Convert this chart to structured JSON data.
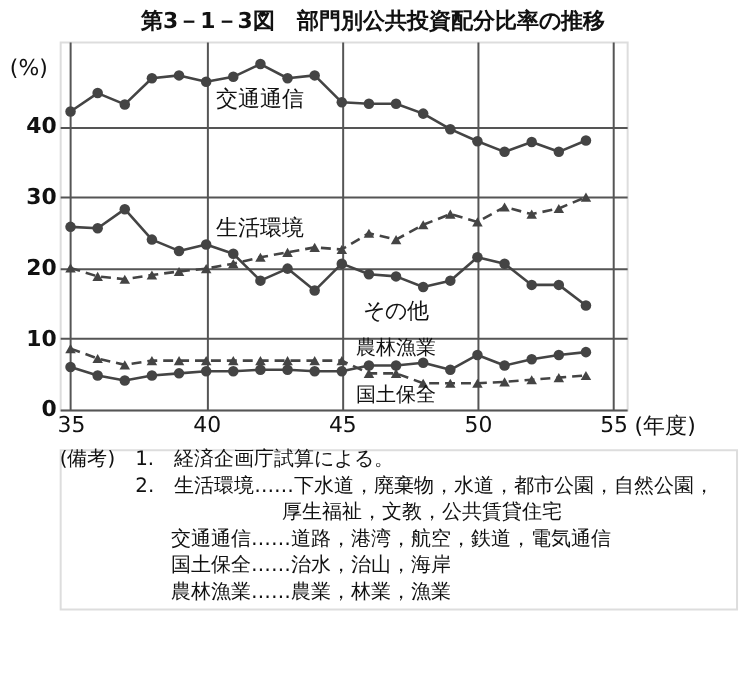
{
  "chart_data": {
    "type": "line",
    "title": "第3－1－3図　部門別公共投資配分比率の推移",
    "xlabel": "(年度)",
    "ylabel": "(%)",
    "x": [
      35,
      36,
      37,
      38,
      39,
      40,
      41,
      42,
      43,
      44,
      45,
      46,
      47,
      48,
      49,
      50,
      51,
      52,
      53,
      54
    ],
    "xlim": [
      34.6,
      55.5
    ],
    "xticks": [
      35,
      40,
      45,
      50,
      55
    ],
    "ylim": [
      0,
      52
    ],
    "yticks": [
      0,
      10,
      20,
      30,
      40
    ],
    "grid": true,
    "series": [
      {
        "name": "交通通信",
        "color": "#444444",
        "marker": "circle",
        "line_style": "solid",
        "values": [
          42.1,
          44.7,
          43.1,
          46.8,
          47.2,
          46.3,
          47.0,
          48.8,
          46.8,
          47.2,
          43.4,
          43.2,
          43.2,
          41.8,
          39.6,
          37.9,
          36.4,
          37.8,
          36.4,
          38.0
        ]
      },
      {
        "name": "生活環境",
        "color": "#444444",
        "marker": "triangle",
        "line_style": "dashed",
        "values": [
          20.0,
          18.8,
          18.4,
          19.0,
          19.5,
          19.9,
          20.6,
          21.5,
          22.2,
          22.9,
          22.6,
          24.9,
          24.0,
          26.1,
          27.6,
          26.5,
          28.6,
          27.6,
          28.4,
          30.0
        ]
      },
      {
        "name": "その他",
        "color": "#444444",
        "marker": "circle",
        "line_style": "solid",
        "values": [
          25.8,
          25.6,
          28.3,
          24.0,
          22.4,
          23.3,
          22.0,
          18.2,
          19.9,
          16.8,
          20.6,
          19.1,
          18.8,
          17.3,
          18.2,
          21.5,
          20.6,
          17.6,
          17.6,
          14.7
        ]
      },
      {
        "name": "農林漁業",
        "color": "#444444",
        "marker": "circle",
        "line_style": "solid",
        "values": [
          6.0,
          4.8,
          4.1,
          4.8,
          5.1,
          5.4,
          5.4,
          5.6,
          5.6,
          5.4,
          5.4,
          6.2,
          6.2,
          6.6,
          5.6,
          7.7,
          6.2,
          7.1,
          7.7,
          8.1
        ]
      },
      {
        "name": "国土保全",
        "color": "#444444",
        "marker": "triangle",
        "line_style": "dashed",
        "values": [
          8.6,
          7.2,
          6.3,
          6.9,
          6.9,
          6.9,
          6.9,
          6.9,
          6.9,
          6.9,
          6.9,
          5.1,
          5.1,
          3.7,
          3.7,
          3.7,
          3.9,
          4.2,
          4.5,
          4.8
        ]
      }
    ],
    "annotations": [
      "(備考)　1.　経済企画庁試算による。",
      "2.　生活環境……下水道，廃棄物，水道，都市公園，自然公園，",
      "厚生福祉，文教，公共賃貸住宅",
      "交通通信……道路，港湾，航空，鉄道，電気通信",
      "国土保全……治水，治山，海岸",
      "農林漁業……農業，林業，漁業"
    ]
  }
}
